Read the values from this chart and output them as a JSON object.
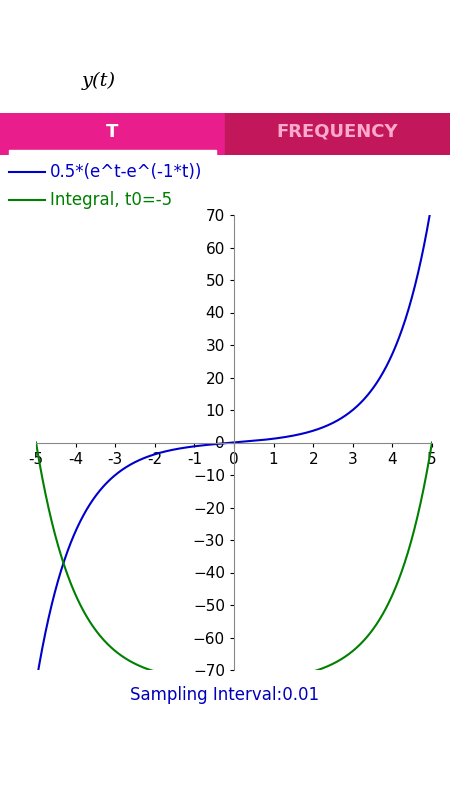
{
  "t_start": -5,
  "t_end": 5,
  "dt": 0.01,
  "t0": -5,
  "ylim": [
    -70,
    70
  ],
  "xlim": [
    -5,
    5
  ],
  "yticks": [
    -70,
    -60,
    -50,
    -40,
    -30,
    -20,
    -10,
    0,
    10,
    20,
    30,
    40,
    50,
    60,
    70
  ],
  "xticks": [
    -5,
    -4,
    -3,
    -2,
    -1,
    0,
    1,
    2,
    3,
    4,
    5
  ],
  "sinh_color": "#0000CC",
  "integral_color": "#008000",
  "legend_sinh_label": "0.5*(e^t-e^(-1*t))",
  "legend_integral_label": "Integral, t0=-5",
  "sampling_label": "Sampling Interval:0.01",
  "sampling_color": "#0000BB",
  "background_color": "#FFFFFF",
  "status_bar_color": "#1565C0",
  "toolbar_color": "#1976D2",
  "tab_bar_color": "#E91E8C",
  "tab_bar_color2": "#C2185B",
  "tab_T_text": "T",
  "tab_FREQ_text": "FREQUENCY",
  "nav_bar_color": "#000000",
  "line_width": 1.5,
  "legend_fontsize": 12,
  "tick_fontsize": 11,
  "sampling_fontsize": 12,
  "figure_width": 4.5,
  "figure_height": 8.0,
  "figure_dpi": 100
}
